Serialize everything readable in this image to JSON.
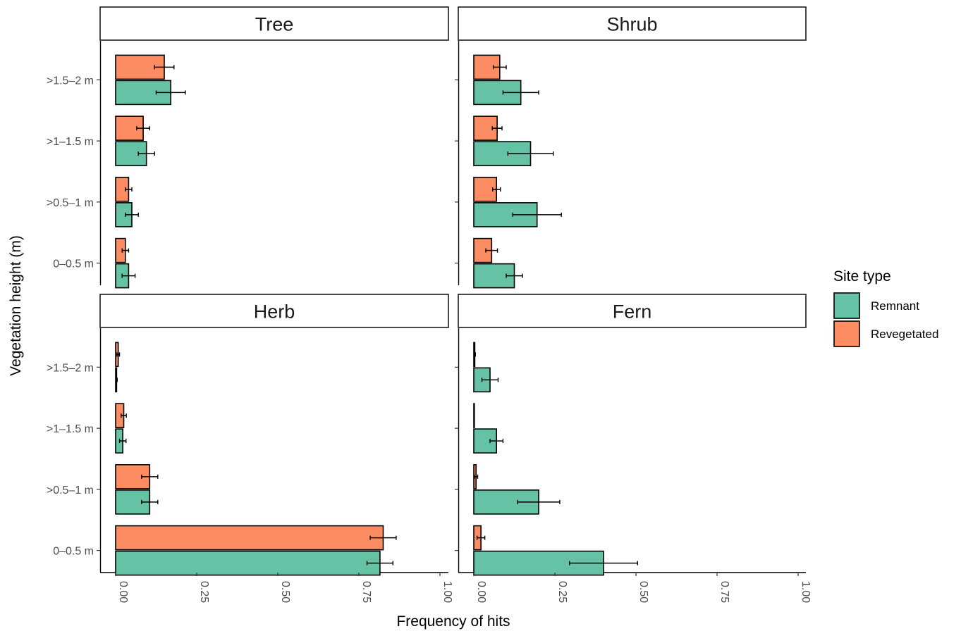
{
  "chart_data": {
    "type": "bar",
    "orientation": "horizontal",
    "facets": [
      "Tree",
      "Shrub",
      "Herb",
      "Fern"
    ],
    "categories": [
      "0–0.5 m",
      ">0.5–1 m",
      ">1–1.5 m",
      ">1.5–2 m"
    ],
    "xlabel": "Frequency of hits",
    "ylabel": "Vegetation height (m)",
    "xlim": [
      0,
      1
    ],
    "xticks": [
      "0.00",
      "0.25",
      "0.50",
      "0.75",
      "1.00"
    ],
    "legend": {
      "title": "Site type",
      "position": "right",
      "entries": [
        "Remnant",
        "Revegetated"
      ]
    },
    "colors": {
      "Remnant": "#66c2a5",
      "Revegetated": "#fc8d62"
    },
    "panels": [
      {
        "facet": "Tree",
        "series": [
          {
            "name": "Remnant",
            "values": [
              0.04,
              0.05,
              0.095,
              0.17
            ],
            "errors": [
              0.02,
              0.02,
              0.025,
              0.045
            ]
          },
          {
            "name": "Revegetated",
            "values": [
              0.03,
              0.04,
              0.085,
              0.15
            ],
            "errors": [
              0.01,
              0.01,
              0.02,
              0.03
            ]
          }
        ]
      },
      {
        "facet": "Shrub",
        "series": [
          {
            "name": "Remnant",
            "values": [
              0.125,
              0.195,
              0.175,
              0.145
            ],
            "errors": [
              0.025,
              0.075,
              0.07,
              0.055
            ]
          },
          {
            "name": "Revegetated",
            "values": [
              0.055,
              0.07,
              0.072,
              0.08
            ],
            "errors": [
              0.018,
              0.012,
              0.015,
              0.02
            ]
          }
        ]
      },
      {
        "facet": "Herb",
        "series": [
          {
            "name": "Remnant",
            "values": [
              0.815,
              0.105,
              0.022,
              0.003
            ],
            "errors": [
              0.04,
              0.025,
              0.01,
              0.002
            ]
          },
          {
            "name": "Revegetated",
            "values": [
              0.825,
              0.105,
              0.025,
              0.008
            ],
            "errors": [
              0.04,
              0.025,
              0.008,
              0.004
            ]
          }
        ]
      },
      {
        "facet": "Fern",
        "series": [
          {
            "name": "Remnant",
            "values": [
              0.4,
              0.2,
              0.07,
              0.05
            ],
            "errors": [
              0.105,
              0.065,
              0.02,
              0.025
            ]
          },
          {
            "name": "Revegetated",
            "values": [
              0.022,
              0.007,
              0.0,
              0.003
            ],
            "errors": [
              0.012,
              0.005,
              0.0,
              0.002
            ]
          }
        ]
      }
    ]
  }
}
